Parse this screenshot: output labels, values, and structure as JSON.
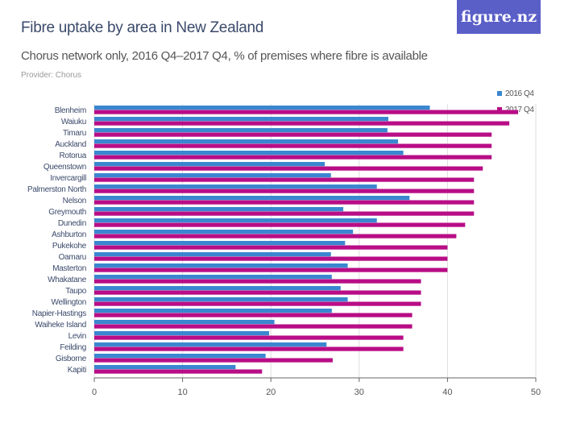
{
  "logo": "figure.nz",
  "chart_data": {
    "type": "bar",
    "orientation": "horizontal",
    "title": "Fibre uptake by area in New Zealand",
    "subtitle": "Chorus network only, 2016 Q4–2017 Q4, % of premises where fibre is available",
    "provider": "Provider: Chorus",
    "xlim": [
      0,
      50
    ],
    "xticks": [
      0,
      10,
      20,
      30,
      40,
      50
    ],
    "grid": true,
    "legend_position": "top-right",
    "categories": [
      "Blenheim",
      "Waiuku",
      "Timaru",
      "Auckland",
      "Rotorua",
      "Queenstown",
      "Invercargill",
      "Palmerston North",
      "Nelson",
      "Greymouth",
      "Dunedin",
      "Ashburton",
      "Pukekohe",
      "Oamaru",
      "Masterton",
      "Whakatane",
      "Taupo",
      "Wellington",
      "Napier-Hastings",
      "Waiheke Island",
      "Levin",
      "Feilding",
      "Gisborne",
      "Kapiti"
    ],
    "series": [
      {
        "name": "2016 Q4",
        "color": "#3a87d0",
        "values": [
          38,
          33.3,
          33.2,
          34.4,
          35,
          26.1,
          26.8,
          32,
          35.7,
          28.2,
          32,
          29.3,
          28.4,
          26.8,
          28.7,
          26.9,
          27.9,
          28.7,
          26.9,
          20.4,
          19.8,
          26.3,
          19.4,
          16
        ]
      },
      {
        "name": "2017 Q4",
        "color": "#b80d86",
        "values": [
          48,
          47,
          45,
          45,
          45,
          44,
          43,
          43,
          43,
          43,
          42,
          41,
          40,
          40,
          40,
          37,
          37,
          37,
          36,
          36,
          35,
          35,
          27,
          19
        ]
      }
    ]
  }
}
